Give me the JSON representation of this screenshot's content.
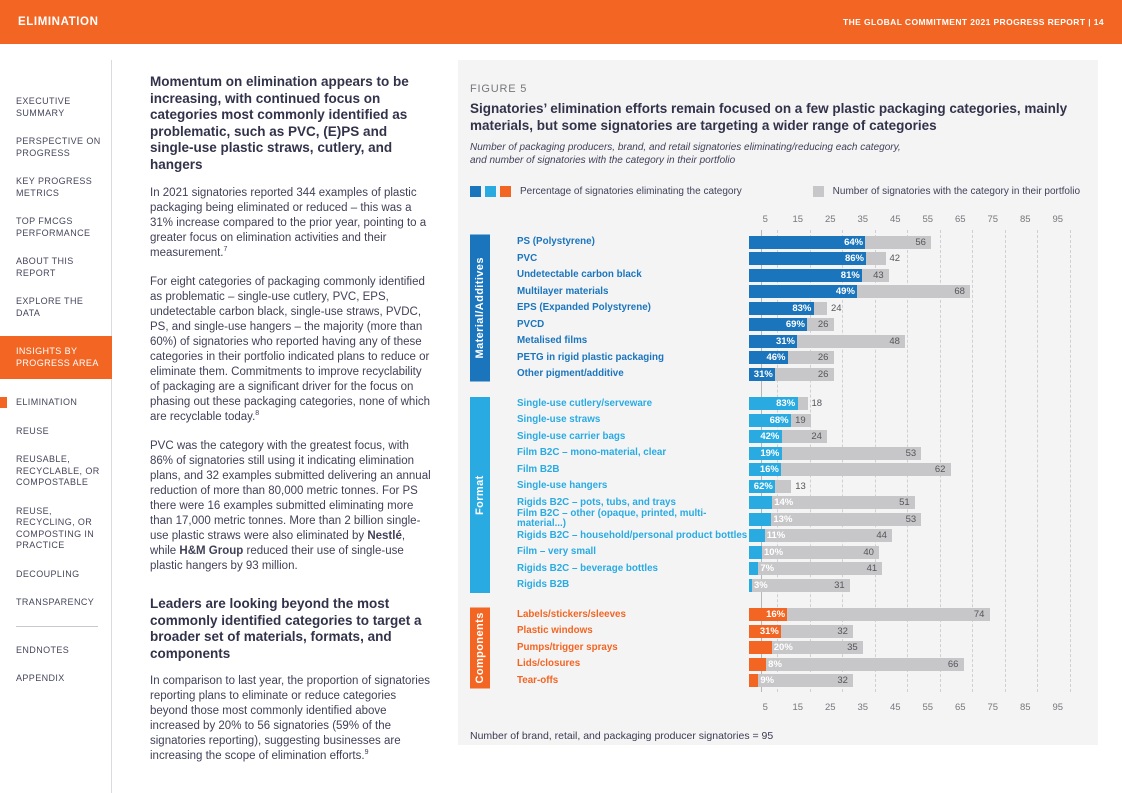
{
  "header": {
    "section": "ELIMINATION",
    "report": "THE GLOBAL COMMITMENT 2021 PROGRESS REPORT | 14"
  },
  "sidebar": {
    "items": [
      {
        "label": "EXECUTIVE SUMMARY"
      },
      {
        "label": "PERSPECTIVE ON PROGRESS"
      },
      {
        "label": "KEY PROGRESS METRICS"
      },
      {
        "label": "TOP FMCGS PERFORMANCE"
      },
      {
        "label": "ABOUT THIS REPORT"
      },
      {
        "label": "EXPLORE THE DATA"
      },
      {
        "label": "INSIGHTS BY PROGRESS AREA",
        "active": true
      },
      {
        "label": "ELIMINATION",
        "bullet": true
      },
      {
        "label": "REUSE"
      },
      {
        "label": "REUSABLE, RECYCLABLE, OR COMPOSTABLE"
      },
      {
        "label": "REUSE, RECYCLING, OR COMPOSTING IN PRACTICE"
      },
      {
        "label": "DECOUPLING"
      },
      {
        "label": "TRANSPARENCY"
      },
      {
        "label": "ENDNOTES"
      },
      {
        "label": "APPENDIX"
      }
    ]
  },
  "article": {
    "heading1": "Momentum on elimination appears to be increasing, with continued focus on categories most commonly identified as problematic, such as PVC, (E)PS and single-use plastic straws, cutlery, and hangers",
    "p1": [
      {
        "t": "In 2021 signatories reported 344 examples of plastic packaging being eliminated or reduced – this was a 31% increase compared to the prior year, pointing to a greater focus on elimination activities and their measurement."
      },
      {
        "t": "7",
        "sup": true
      }
    ],
    "p2": [
      {
        "t": "For eight categories of packaging commonly identified as problematic – single-use cutlery, PVC, EPS, undetectable carbon black, single-use straws, PVDC, PS, and single-use hangers – the majority (more than 60%) of signatories who reported having any of these categories in their portfolio indicated plans to reduce or eliminate them. Commitments to improve recyclability of packaging are a significant driver for the focus on phasing out these packaging categories, none of which are recyclable today."
      },
      {
        "t": "8",
        "sup": true
      }
    ],
    "p3": [
      {
        "t": "PVC was the category with the greatest focus, with 86% of signatories still using it indicating elimination plans, and 32 examples submitted delivering an annual reduction of more than 80,000 metric tonnes. For PS there were 16 examples submitted eliminating more than 17,000 metric tonnes. More than 2 billion single-use plastic straws were also eliminated by "
      },
      {
        "t": "Nestlé",
        "b": true
      },
      {
        "t": ", while "
      },
      {
        "t": "H&M Group",
        "b": true
      },
      {
        "t": " reduced their use of single-use plastic hangers by 93 million."
      }
    ],
    "heading2": "Leaders are looking beyond the most commonly identified categories to target a broader set of materials, formats, and components",
    "p4": [
      {
        "t": "In comparison to last year, the proportion of signatories reporting plans to eliminate or reduce categories beyond those most commonly identified above increased by 20% to 56 signatories (59% of the signatories reporting), suggesting businesses are increasing the scope of elimination efforts."
      },
      {
        "t": "9",
        "sup": true
      }
    ]
  },
  "figure": {
    "label": "FIGURE 5"
  },
  "chart_data": {
    "type": "bar",
    "orientation": "horizontal",
    "title": "Signatories’ elimination efforts remain focused on a few plastic packaging categories, mainly materials, but some signatories are targeting a wider range of categories",
    "subtitle": "Number of packaging producers, brand, and retail signatories eliminating/reducing each category, and number of signatories with the category in their portfolio",
    "legend": [
      {
        "label": "Percentage of signatories eliminating the category",
        "colors": [
          "#1B75BC",
          "#29ABE2",
          "#F26522"
        ]
      },
      {
        "label": "Number of signatories with the category in their portfolio",
        "colors": [
          "#C7C7C9"
        ]
      }
    ],
    "xlim": [
      0,
      100
    ],
    "axis_ticks": [
      5,
      15,
      25,
      35,
      45,
      55,
      65,
      75,
      85,
      95
    ],
    "portfolio_bar_color": "#C7C7C9",
    "groups": [
      {
        "name": "Material/Additives",
        "color": "#1B75BC",
        "rows": [
          {
            "label": "PS (Polystyrene)",
            "pct": 64,
            "portfolio": 56
          },
          {
            "label": "PVC",
            "pct": 86,
            "portfolio": 42
          },
          {
            "label": "Undetectable carbon black",
            "pct": 81,
            "portfolio": 43
          },
          {
            "label": "Multilayer materials",
            "pct": 49,
            "portfolio": 68
          },
          {
            "label": "EPS (Expanded Polystyrene)",
            "pct": 83,
            "portfolio": 24
          },
          {
            "label": "PVCD",
            "pct": 69,
            "portfolio": 26
          },
          {
            "label": "Metalised films",
            "pct": 31,
            "portfolio": 48
          },
          {
            "label": "PETG in rigid plastic packaging",
            "pct": 46,
            "portfolio": 26
          },
          {
            "label": "Other pigment/additive",
            "pct": 31,
            "portfolio": 26
          }
        ]
      },
      {
        "name": "Format",
        "color": "#29ABE2",
        "rows": [
          {
            "label": "Single-use cutlery/serveware",
            "pct": 83,
            "portfolio": 18
          },
          {
            "label": "Single-use straws",
            "pct": 68,
            "portfolio": 19
          },
          {
            "label": "Single-use carrier bags",
            "pct": 42,
            "portfolio": 24
          },
          {
            "label": "Film B2C – mono-material, clear",
            "pct": 19,
            "portfolio": 53
          },
          {
            "label": "Film B2B",
            "pct": 16,
            "portfolio": 62
          },
          {
            "label": "Single-use hangers",
            "pct": 62,
            "portfolio": 13
          },
          {
            "label": "Rigids B2C – pots, tubs, and trays",
            "pct": 14,
            "portfolio": 51
          },
          {
            "label": "Film B2C – other (opaque, printed, multi-material...)",
            "pct": 13,
            "portfolio": 53
          },
          {
            "label": "Rigids B2C – household/personal product bottles",
            "pct": 11,
            "portfolio": 44
          },
          {
            "label": "Film – very small",
            "pct": 10,
            "portfolio": 40
          },
          {
            "label": "Rigids B2C – beverage bottles",
            "pct": 7,
            "portfolio": 41
          },
          {
            "label": "Rigids B2B",
            "pct": 3,
            "portfolio": 31
          }
        ]
      },
      {
        "name": "Components",
        "color": "#F26522",
        "rows": [
          {
            "label": "Labels/stickers/sleeves",
            "pct": 16,
            "portfolio": 74
          },
          {
            "label": "Plastic windows",
            "pct": 31,
            "portfolio": 32
          },
          {
            "label": "Pumps/trigger sprays",
            "pct": 20,
            "portfolio": 35
          },
          {
            "label": "Lids/closures",
            "pct": 8,
            "portfolio": 66
          },
          {
            "label": "Tear-offs",
            "pct": 9,
            "portfolio": 32
          }
        ]
      }
    ],
    "footnote": "Number of brand, retail, and packaging producer signatories = 95"
  }
}
